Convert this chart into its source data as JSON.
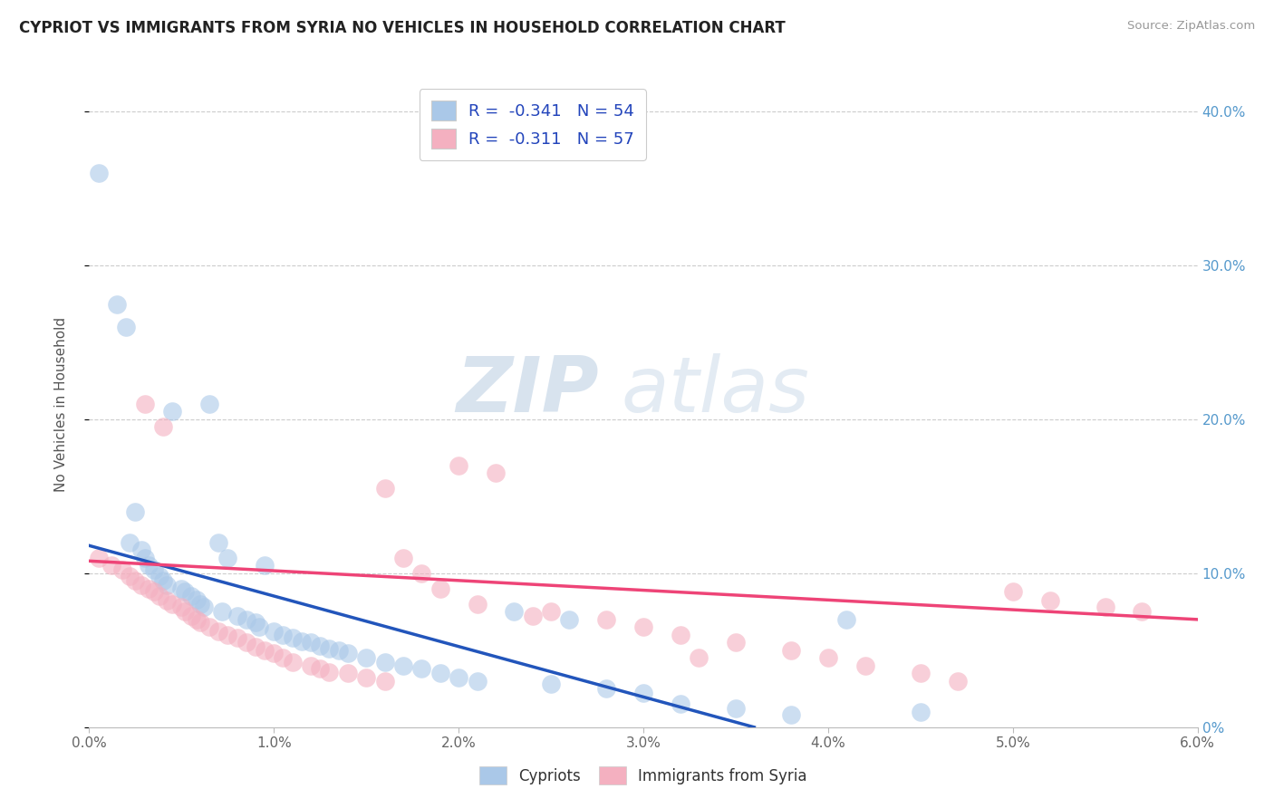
{
  "title": "CYPRIOT VS IMMIGRANTS FROM SYRIA NO VEHICLES IN HOUSEHOLD CORRELATION CHART",
  "source": "Source: ZipAtlas.com",
  "ylabel": "No Vehicles in Household",
  "xlim": [
    0.0,
    6.0
  ],
  "ylim": [
    0.0,
    42.0
  ],
  "legend_labels": [
    "Cypriots",
    "Immigrants from Syria"
  ],
  "legend_R": [
    "-0.341",
    "-0.311"
  ],
  "legend_N": [
    "54",
    "57"
  ],
  "cypriot_color": "#aac8e8",
  "syria_color": "#f4b0c0",
  "cypriot_line_color": "#2255bb",
  "syria_line_color": "#ee4477",
  "background_color": "#ffffff",
  "cypriot_x": [
    0.05,
    0.15,
    0.2,
    0.22,
    0.25,
    0.28,
    0.3,
    0.32,
    0.35,
    0.38,
    0.4,
    0.42,
    0.45,
    0.5,
    0.52,
    0.55,
    0.58,
    0.6,
    0.62,
    0.65,
    0.7,
    0.72,
    0.75,
    0.8,
    0.85,
    0.9,
    0.92,
    0.95,
    1.0,
    1.05,
    1.1,
    1.15,
    1.2,
    1.25,
    1.3,
    1.35,
    1.4,
    1.5,
    1.6,
    1.7,
    1.8,
    1.9,
    2.0,
    2.1,
    2.3,
    2.5,
    2.6,
    2.8,
    3.0,
    3.2,
    3.5,
    3.8,
    4.1,
    4.5
  ],
  "cypriot_y": [
    36.0,
    27.5,
    26.0,
    12.0,
    14.0,
    11.5,
    11.0,
    10.5,
    10.2,
    9.8,
    9.5,
    9.2,
    20.5,
    9.0,
    8.8,
    8.5,
    8.3,
    8.0,
    7.8,
    21.0,
    12.0,
    7.5,
    11.0,
    7.2,
    7.0,
    6.8,
    6.5,
    10.5,
    6.2,
    6.0,
    5.8,
    5.6,
    5.5,
    5.3,
    5.1,
    5.0,
    4.8,
    4.5,
    4.2,
    4.0,
    3.8,
    3.5,
    3.2,
    3.0,
    7.5,
    2.8,
    7.0,
    2.5,
    2.2,
    1.5,
    1.2,
    0.8,
    7.0,
    1.0
  ],
  "syria_x": [
    0.05,
    0.12,
    0.18,
    0.22,
    0.25,
    0.28,
    0.32,
    0.35,
    0.38,
    0.42,
    0.45,
    0.5,
    0.52,
    0.55,
    0.58,
    0.6,
    0.65,
    0.7,
    0.75,
    0.8,
    0.85,
    0.9,
    0.95,
    1.0,
    1.05,
    1.1,
    1.2,
    1.25,
    1.3,
    1.4,
    1.5,
    1.6,
    1.7,
    1.8,
    1.9,
    2.0,
    2.2,
    2.5,
    2.8,
    3.0,
    3.2,
    3.5,
    3.8,
    4.0,
    4.2,
    4.5,
    4.7,
    5.0,
    5.2,
    5.5,
    5.7,
    0.3,
    0.4,
    1.6,
    2.1,
    2.4,
    3.3
  ],
  "syria_y": [
    11.0,
    10.5,
    10.2,
    9.8,
    9.5,
    9.2,
    9.0,
    8.8,
    8.5,
    8.2,
    8.0,
    7.8,
    7.5,
    7.2,
    7.0,
    6.8,
    6.5,
    6.2,
    6.0,
    5.8,
    5.5,
    5.2,
    5.0,
    4.8,
    4.5,
    4.2,
    4.0,
    3.8,
    3.6,
    3.5,
    3.2,
    3.0,
    11.0,
    10.0,
    9.0,
    17.0,
    16.5,
    7.5,
    7.0,
    6.5,
    6.0,
    5.5,
    5.0,
    4.5,
    4.0,
    3.5,
    3.0,
    8.8,
    8.2,
    7.8,
    7.5,
    21.0,
    19.5,
    15.5,
    8.0,
    7.2,
    4.5
  ],
  "cyp_trend_x0": 0.0,
  "cyp_trend_x1": 3.6,
  "cyp_trend_y0": 11.8,
  "cyp_trend_y1": 0.0,
  "syr_trend_x0": 0.0,
  "syr_trend_x1": 6.0,
  "syr_trend_y0": 10.8,
  "syr_trend_y1": 7.0
}
